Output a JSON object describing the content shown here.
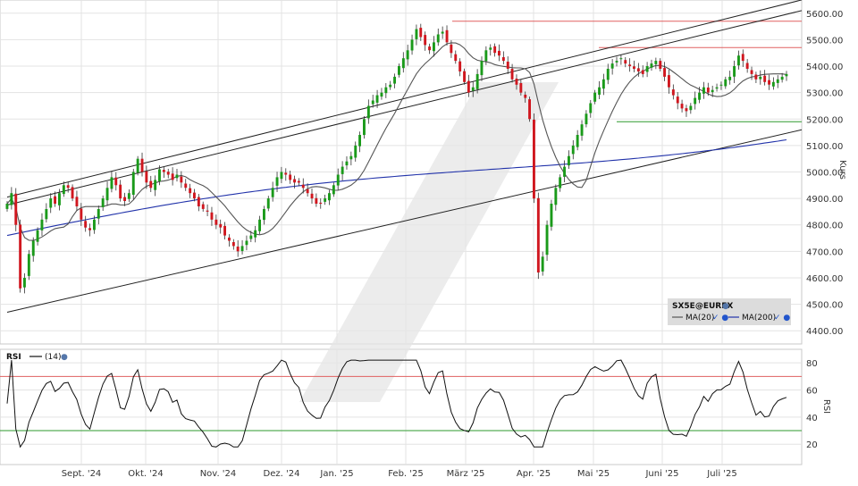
{
  "colors": {
    "up": "#1a9a1a",
    "down": "#d0171f",
    "ma20": "#555555",
    "ma200": "#2233aa",
    "resistance": "#e06060",
    "support": "#2e9a2e",
    "channel": "#222222",
    "rsi_line": "#111111",
    "rsi_upper": "#e06060",
    "rsi_lower": "#2e9a2e",
    "grid": "#e3e3e3",
    "watermark": "#e6e6e6",
    "legend_bg": "#dcdcdc"
  },
  "chart_data": [
    {
      "type": "line",
      "subtype": "candlestick",
      "title": "SX5E@EUREX",
      "ylabel": "Kurs",
      "ylim": [
        4350,
        5650
      ],
      "y_ticks": [
        "5600.00",
        "5500.00",
        "5400.00",
        "5300.00",
        "5200.00",
        "5100.00",
        "5000.00",
        "4900.00",
        "4800.00",
        "4700.00",
        "4600.00",
        "4500.00",
        "4400.00"
      ],
      "x_ticks": [
        "Sept. '24",
        "Okt. '24",
        "Nov. '24",
        "Dez. '24",
        "Jan. '25",
        "Feb. '25",
        "März '25",
        "Apr. '25",
        "Mai '25",
        "Juni '25",
        "Juli '25"
      ],
      "grid": true,
      "legend_position": "bottom-right",
      "legend": [
        {
          "label": "MA(20)",
          "color": "#555555",
          "icons": "✓ ●"
        },
        {
          "label": "MA(200)",
          "color": "#2233aa",
          "icons": "✓ ●"
        }
      ],
      "ticker_icon": "●",
      "close_series": [
        4880,
        4920,
        4800,
        4560,
        4600,
        4690,
        4740,
        4780,
        4820,
        4860,
        4900,
        4880,
        4920,
        4950,
        4940,
        4900,
        4870,
        4820,
        4790,
        4780,
        4820,
        4860,
        4900,
        4940,
        4980,
        4950,
        4900,
        4890,
        4920,
        5000,
        5050,
        5000,
        4960,
        4940,
        4970,
        5010,
        5000,
        4990,
        4970,
        4990,
        4960,
        4940,
        4920,
        4900,
        4870,
        4860,
        4850,
        4820,
        4800,
        4790,
        4760,
        4740,
        4720,
        4700,
        4720,
        4740,
        4760,
        4780,
        4820,
        4860,
        4900,
        4940,
        4980,
        5000,
        4990,
        4970,
        4960,
        4960,
        4940,
        4920,
        4900,
        4880,
        4880,
        4900,
        4920,
        4950,
        4990,
        5020,
        5040,
        5060,
        5100,
        5140,
        5200,
        5250,
        5270,
        5290,
        5300,
        5320,
        5330,
        5360,
        5400,
        5430,
        5460,
        5500,
        5540,
        5510,
        5480,
        5460,
        5490,
        5520,
        5530,
        5490,
        5450,
        5420,
        5380,
        5340,
        5300,
        5320,
        5370,
        5420,
        5460,
        5470,
        5450,
        5440,
        5420,
        5390,
        5350,
        5330,
        5300,
        5280,
        5200,
        4900,
        4620,
        4680,
        4800,
        4880,
        4940,
        4980,
        5020,
        5060,
        5100,
        5140,
        5180,
        5220,
        5260,
        5300,
        5320,
        5350,
        5390,
        5410,
        5420,
        5430,
        5410,
        5400,
        5390,
        5380,
        5370,
        5400,
        5410,
        5420,
        5390,
        5360,
        5320,
        5290,
        5260,
        5240,
        5230,
        5250,
        5280,
        5300,
        5320,
        5300,
        5310,
        5320,
        5330,
        5350,
        5360,
        5400,
        5440,
        5420,
        5390,
        5370,
        5350,
        5360,
        5340,
        5330,
        5340,
        5350,
        5360,
        5370
      ],
      "series": [
        {
          "name": "MA(20)"
        },
        {
          "name": "MA(200)"
        }
      ],
      "horizontal_lines": [
        {
          "kind": "resistance",
          "value": 5570
        },
        {
          "kind": "resistance",
          "value": 5470
        },
        {
          "kind": "support",
          "value": 5190
        }
      ],
      "channel_lines": [
        {
          "from_index": 0,
          "from_value": 4905,
          "to_index": 180,
          "to_value": 5640
        },
        {
          "from_index": 0,
          "from_value": 4875,
          "to_index": 180,
          "to_value": 5600
        },
        {
          "from_index": 0,
          "from_value": 4470,
          "to_index": 180,
          "to_value": 5150
        }
      ]
    },
    {
      "type": "line",
      "title": "RSI",
      "ylabel": "RSI",
      "ylim": [
        5,
        90
      ],
      "y_ticks": [
        "80",
        "60",
        "40",
        "20"
      ],
      "grid": true,
      "legend": [
        {
          "label": "(14)",
          "color": "#111111",
          "icons": "●"
        }
      ],
      "series": [
        {
          "name": "(14)"
        }
      ],
      "overbought": 70,
      "oversold": 30
    }
  ]
}
